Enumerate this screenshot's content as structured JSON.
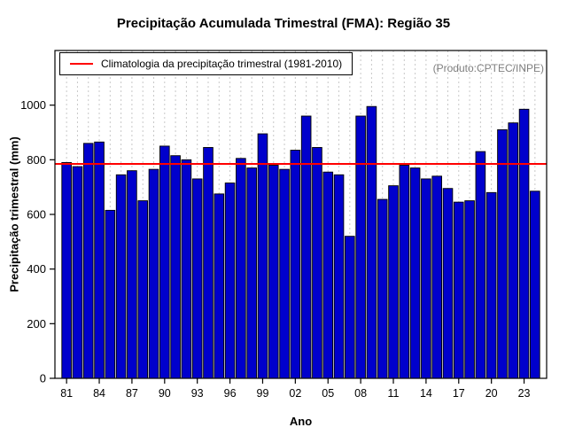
{
  "chart_data": {
    "type": "bar",
    "title": "Precipitação Acumulada Trimestral (FMA): Região 35",
    "xlabel": "Ano",
    "ylabel": "Precipitação trimestral (mm)",
    "ylim": [
      0,
      1200
    ],
    "yticks": [
      0,
      200,
      400,
      600,
      800,
      1000
    ],
    "categories": [
      "81",
      "82",
      "83",
      "84",
      "85",
      "86",
      "87",
      "88",
      "89",
      "90",
      "91",
      "92",
      "93",
      "94",
      "95",
      "96",
      "97",
      "98",
      "99",
      "00",
      "01",
      "02",
      "03",
      "04",
      "05",
      "06",
      "07",
      "08",
      "09",
      "10",
      "11",
      "12",
      "13",
      "14",
      "15",
      "16",
      "17",
      "18",
      "19",
      "20",
      "21",
      "22",
      "23",
      "24"
    ],
    "values": [
      790,
      775,
      860,
      865,
      615,
      745,
      760,
      650,
      765,
      850,
      815,
      800,
      730,
      845,
      675,
      715,
      805,
      770,
      895,
      780,
      765,
      835,
      960,
      845,
      755,
      745,
      520,
      960,
      995,
      655,
      705,
      780,
      770,
      730,
      740,
      695,
      645,
      650,
      830,
      680,
      910,
      935,
      985,
      685
    ],
    "xtick_labels": [
      "81",
      "84",
      "87",
      "90",
      "93",
      "96",
      "99",
      "02",
      "05",
      "08",
      "11",
      "14",
      "17",
      "20",
      "23"
    ],
    "climatology_value": 785,
    "legend_label": "Climatologia da precipitação trimestral (1981-2010)",
    "annotation": "(Produto:CPTEC/INPE)",
    "bar_color": "#0000CC",
    "bar_border_color": "#000000",
    "line_color": "#FF0000",
    "grid": "dashed-vertical",
    "grid_color": "#C8C8C8",
    "legend_position": "top-left"
  }
}
